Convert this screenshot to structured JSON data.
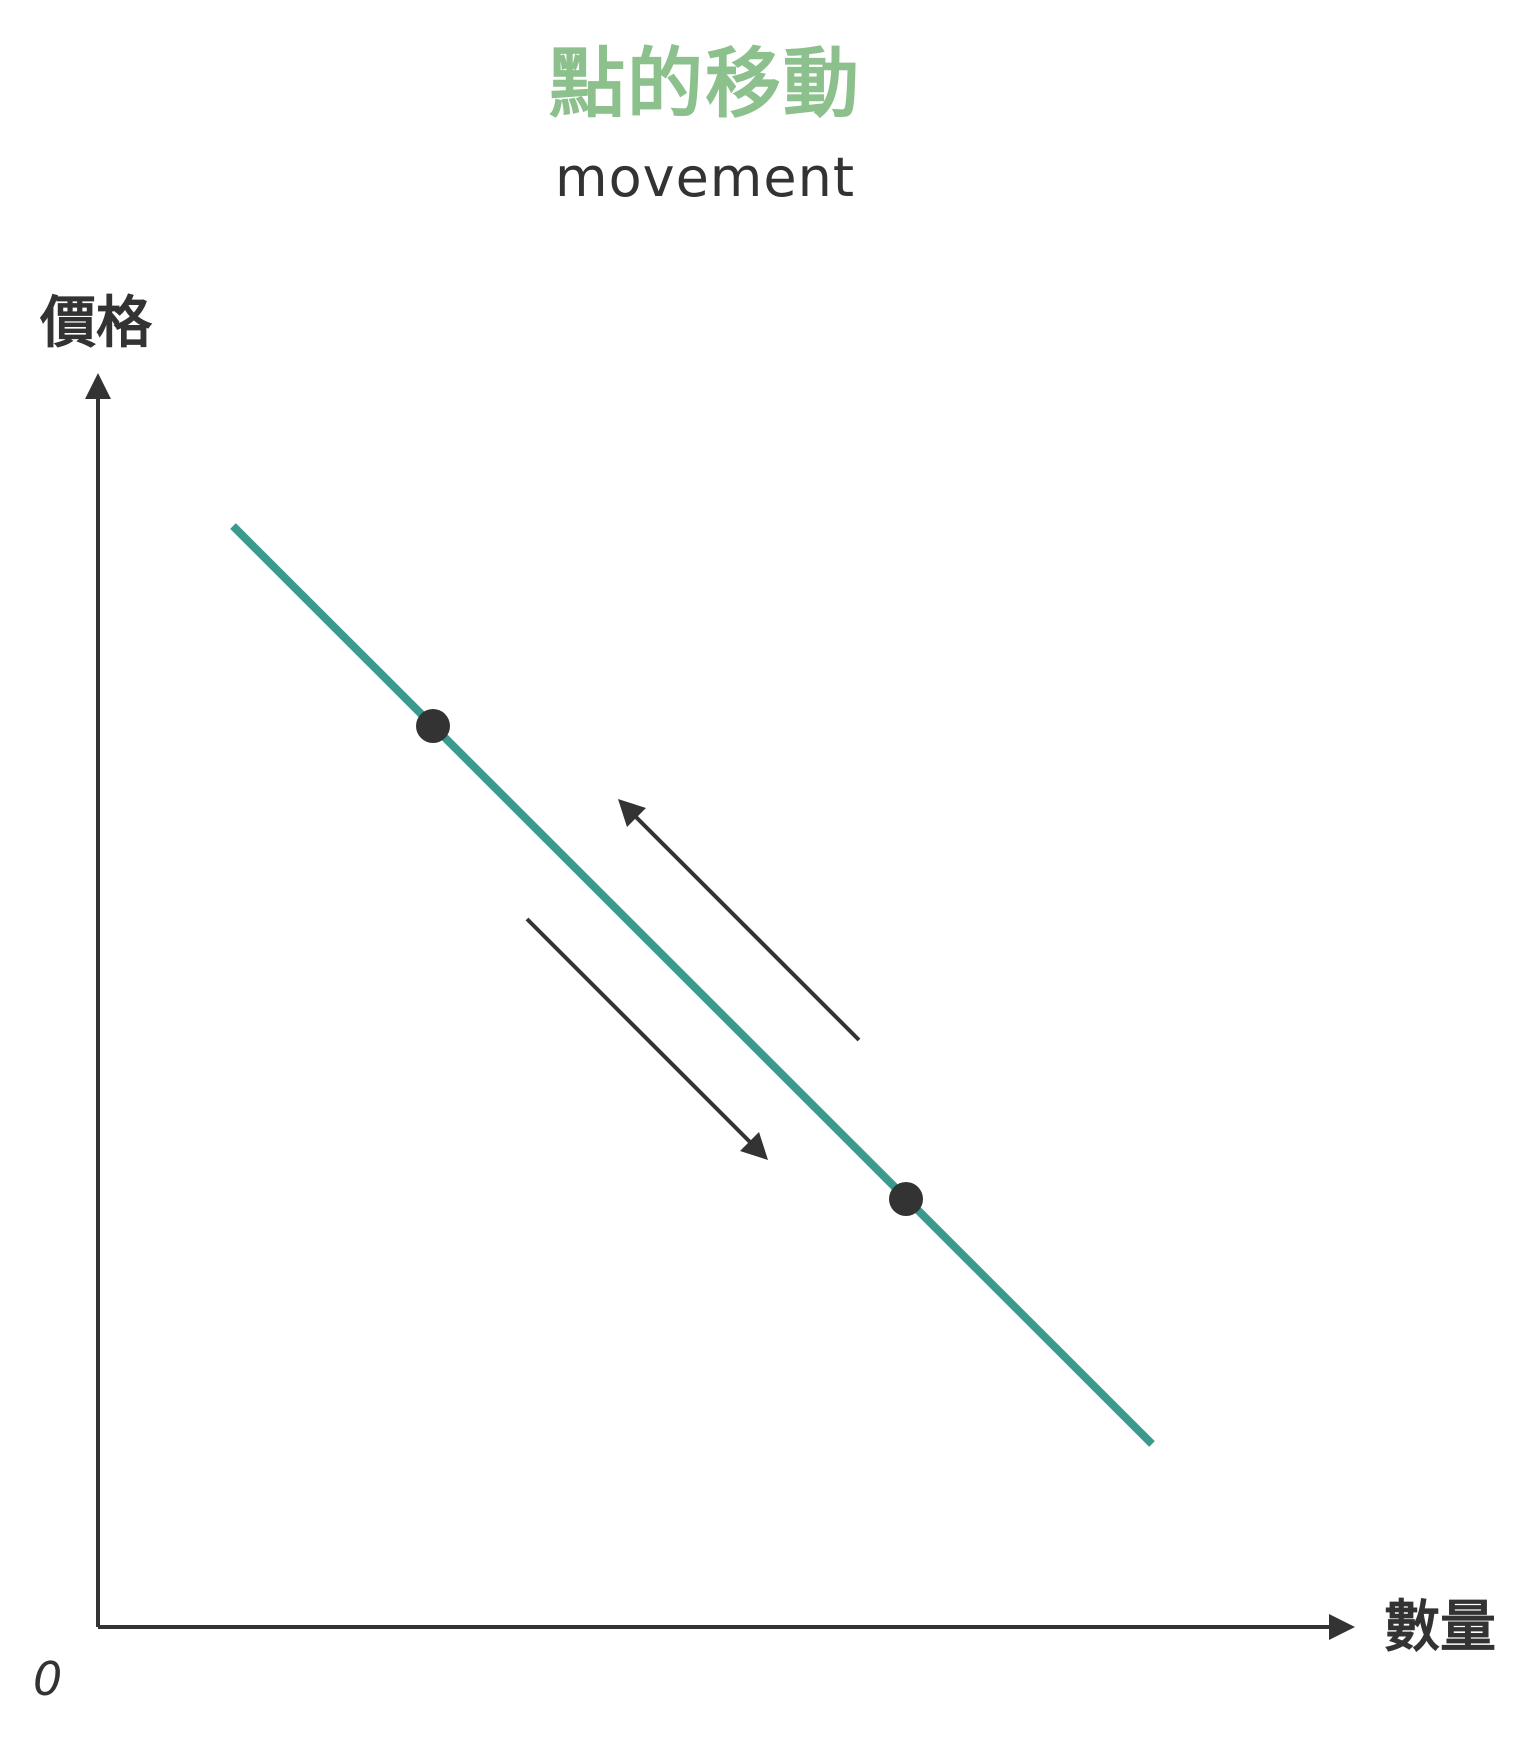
{
  "title": "點的移動",
  "subtitle": "movement",
  "axes": {
    "y_label": "價格",
    "x_label": "數量",
    "origin_label": "0"
  },
  "colors": {
    "title": "#8cc08c",
    "text": "#333333",
    "curve": "#3a9a8e",
    "axis": "#333333",
    "point": "#333333",
    "arrow": "#333333"
  },
  "diagram": {
    "curve": "downward-sloping line",
    "points": 2,
    "arrows": [
      "up-left along curve",
      "down-right along curve"
    ]
  }
}
